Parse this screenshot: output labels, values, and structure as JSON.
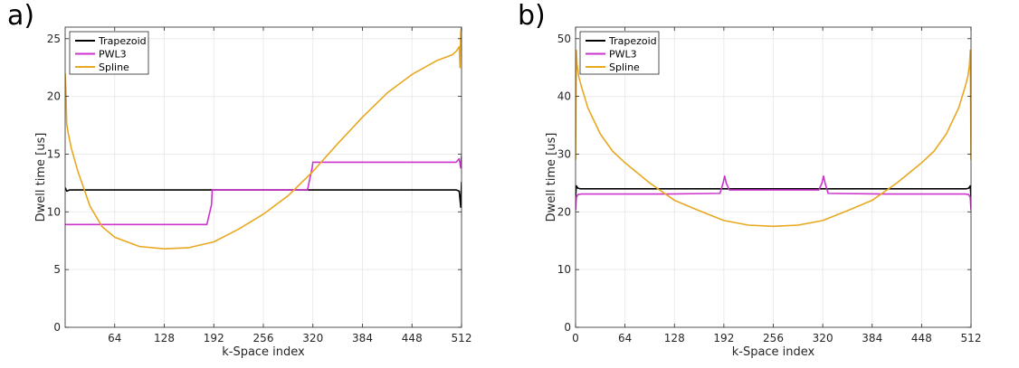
{
  "chart_data": [
    {
      "type": "line",
      "panel_label": "a)",
      "xlabel": "k-Space index",
      "ylabel": "Dwell time [us]",
      "xlim": [
        0,
        512
      ],
      "ylim": [
        0,
        26
      ],
      "xticks": [
        64,
        128,
        192,
        256,
        320,
        384,
        448,
        512
      ],
      "yticks": [
        0,
        5,
        10,
        15,
        20,
        25
      ],
      "grid": true,
      "legend": "top-left",
      "series": [
        {
          "name": "Trapezoid",
          "color": "#000000",
          "x": [
            0,
            2,
            6,
            40,
            120,
            200,
            280,
            360,
            440,
            505,
            509,
            511,
            512
          ],
          "y": [
            12.1,
            11.8,
            11.9,
            11.9,
            11.9,
            11.9,
            11.9,
            11.9,
            11.9,
            11.9,
            11.8,
            10.4,
            12.6
          ]
        },
        {
          "name": "PWL3",
          "color": "#cc33cc",
          "x": [
            0,
            100,
            183,
            189,
            190,
            250,
            313,
            319,
            320,
            400,
            480,
            505,
            509,
            511,
            512
          ],
          "y": [
            8.9,
            8.9,
            8.9,
            10.6,
            11.9,
            11.9,
            11.9,
            13.8,
            14.3,
            14.3,
            14.3,
            14.3,
            14.6,
            13.8,
            14.9
          ]
        },
        {
          "name": "Spline",
          "color": "#e8a820",
          "x": [
            0,
            1,
            2,
            4,
            8,
            16,
            32,
            48,
            64,
            96,
            128,
            160,
            192,
            224,
            256,
            288,
            320,
            352,
            384,
            416,
            448,
            480,
            500,
            505,
            509,
            510,
            511,
            512
          ],
          "y": [
            22.0,
            20.5,
            17.6,
            16.8,
            15.5,
            13.6,
            10.5,
            8.7,
            7.8,
            7.0,
            6.8,
            6.9,
            7.4,
            8.5,
            9.8,
            11.4,
            13.5,
            15.9,
            18.2,
            20.3,
            21.9,
            23.1,
            23.6,
            23.9,
            24.3,
            22.5,
            25.6,
            26.0
          ]
        }
      ]
    },
    {
      "type": "line",
      "panel_label": "b)",
      "xlabel": "k-Space index",
      "ylabel": "Dwell time [us]",
      "xlim": [
        0,
        512
      ],
      "ylim": [
        0,
        52
      ],
      "xticks": [
        0,
        64,
        128,
        192,
        256,
        320,
        384,
        448,
        512
      ],
      "yticks": [
        0,
        10,
        20,
        30,
        40,
        50
      ],
      "grid": true,
      "legend": "top-left",
      "series": [
        {
          "name": "Trapezoid",
          "color": "#000000",
          "x": [
            0,
            1,
            3,
            6,
            60,
            120,
            185,
            192,
            200,
            256,
            312,
            320,
            330,
            400,
            470,
            506,
            509,
            511,
            512
          ],
          "y": [
            22.5,
            24.5,
            24.1,
            24.0,
            24.0,
            24.0,
            24.0,
            24.0,
            24.0,
            24.0,
            24.0,
            24.0,
            24.0,
            24.0,
            24.0,
            24.0,
            24.1,
            24.5,
            22.5
          ]
        },
        {
          "name": "PWL3",
          "color": "#cc33cc",
          "x": [
            0,
            1,
            3,
            8,
            60,
            120,
            187,
            191,
            193,
            195,
            199,
            256,
            315,
            319,
            321,
            323,
            327,
            400,
            470,
            504,
            509,
            511,
            512
          ],
          "y": [
            20.3,
            22.5,
            23.0,
            23.1,
            23.1,
            23.1,
            23.2,
            25.0,
            26.2,
            25.0,
            23.8,
            23.8,
            23.8,
            25.0,
            26.2,
            25.0,
            23.2,
            23.1,
            23.1,
            23.1,
            23.0,
            22.5,
            20.3
          ]
        },
        {
          "name": "Spline",
          "color": "#e8a820",
          "x": [
            0,
            1,
            2,
            4,
            8,
            16,
            32,
            48,
            64,
            96,
            128,
            160,
            192,
            224,
            256,
            288,
            320,
            352,
            384,
            416,
            448,
            464,
            480,
            496,
            504,
            508,
            510,
            511,
            512
          ],
          "y": [
            29.0,
            48.0,
            45.5,
            43.5,
            41.5,
            38.0,
            33.5,
            30.5,
            28.5,
            25.0,
            22.0,
            20.2,
            18.5,
            17.7,
            17.5,
            17.7,
            18.5,
            20.2,
            22.0,
            25.0,
            28.5,
            30.5,
            33.5,
            38.0,
            41.5,
            43.5,
            45.5,
            48.0,
            29.0
          ]
        }
      ]
    }
  ]
}
